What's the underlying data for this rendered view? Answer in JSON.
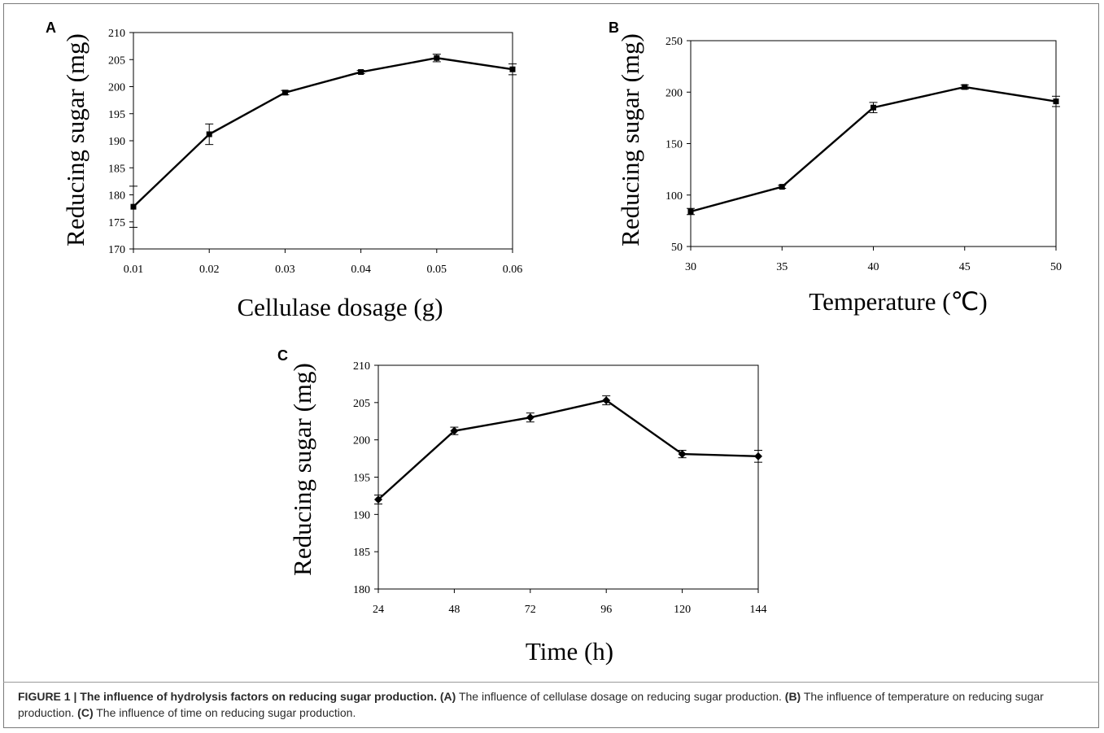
{
  "chart_data": [
    {
      "type": "line",
      "panel": "A",
      "x": [
        0.01,
        0.02,
        0.03,
        0.04,
        0.05,
        0.06
      ],
      "xticks": [
        "0.01",
        "0.02",
        "0.03",
        "0.04",
        "0.05",
        "0.06"
      ],
      "series": [
        {
          "values": [
            177.8,
            191.2,
            198.9,
            202.7,
            205.3,
            203.2
          ],
          "errors": [
            3.8,
            1.9,
            0.4,
            0.3,
            0.7,
            1.0
          ]
        }
      ],
      "ylim": [
        170,
        210
      ],
      "yticks": [
        "170",
        "175",
        "180",
        "185",
        "190",
        "195",
        "200",
        "205",
        "210"
      ],
      "xlabel": "Cellulase dosage (g)",
      "ylabel": "Reducing sugar (mg)",
      "marker": "square"
    },
    {
      "type": "line",
      "panel": "B",
      "x": [
        30,
        35,
        40,
        45,
        50
      ],
      "xticks": [
        "30",
        "35",
        "40",
        "45",
        "50"
      ],
      "series": [
        {
          "values": [
            84,
            108,
            185,
            205,
            191
          ],
          "errors": [
            3,
            1.5,
            5,
            2,
            5
          ]
        }
      ],
      "ylim": [
        50,
        250
      ],
      "yticks": [
        "50",
        "100",
        "150",
        "200",
        "250"
      ],
      "xlabel": "Temperature (℃)",
      "ylabel": "Reducing sugar (mg)",
      "marker": "square"
    },
    {
      "type": "line",
      "panel": "C",
      "x": [
        24,
        48,
        72,
        96,
        120,
        144
      ],
      "xticks": [
        "24",
        "48",
        "72",
        "96",
        "120",
        "144"
      ],
      "series": [
        {
          "values": [
            192.0,
            201.2,
            203.0,
            205.3,
            198.1,
            197.8
          ],
          "errors": [
            0.6,
            0.5,
            0.6,
            0.6,
            0.5,
            0.8
          ]
        }
      ],
      "ylim": [
        180,
        210
      ],
      "yticks": [
        "180",
        "185",
        "190",
        "195",
        "200",
        "205",
        "210"
      ],
      "xlabel": "Time (h)",
      "ylabel": "Reducing sugar (mg)",
      "marker": "diamond"
    }
  ],
  "caption": {
    "lead": "FIGURE 1 | The influence of hydrolysis factors on reducing sugar production.",
    "a_label": "(A)",
    "a_text": " The influence of cellulase dosage on reducing sugar production. ",
    "b_label": "(B)",
    "b_text": " The influence of temperature on reducing sugar production. ",
    "c_label": "(C)",
    "c_text": " The influence of time on reducing sugar production."
  }
}
